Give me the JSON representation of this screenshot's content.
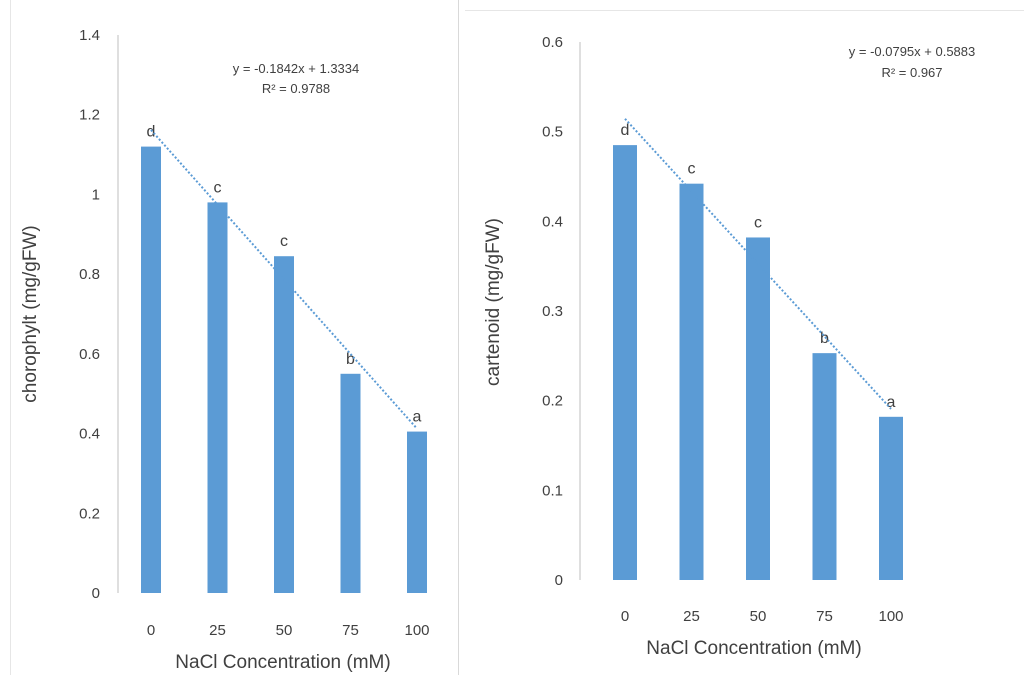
{
  "chart_data": [
    {
      "type": "bar",
      "categories": [
        "0",
        "25",
        "50",
        "75",
        "100"
      ],
      "values": [
        1.12,
        0.98,
        0.845,
        0.55,
        0.405
      ],
      "significance_letters": [
        "d",
        "c",
        "c",
        "b",
        "a"
      ],
      "trendline": {
        "type": "linear",
        "equation": "y = -0.1842x + 1.3334",
        "r2": "R² = 0.9788",
        "slope": -0.1842,
        "intercept": 1.3334,
        "color": "#5b9bd5"
      },
      "xlabel": "NaCl Concentration  (mM)",
      "ylabel": "chorophylt  (mg/gFW)",
      "ylim": [
        0,
        1.4
      ],
      "yticks": [
        "0",
        "0.2",
        "0.4",
        "0.6",
        "0.8",
        "1",
        "1.2",
        "1.4"
      ],
      "bar_color": "#5b9bd5",
      "grid": false
    },
    {
      "type": "bar",
      "categories": [
        "0",
        "25",
        "50",
        "75",
        "100"
      ],
      "values": [
        0.485,
        0.442,
        0.382,
        0.253,
        0.182
      ],
      "significance_letters": [
        "d",
        "c",
        "c",
        "b",
        "a"
      ],
      "trendline": {
        "type": "linear",
        "equation": "y = -0.0795x + 0.5883",
        "r2": "R² = 0.967",
        "slope": -0.0795,
        "intercept": 0.5883,
        "color": "#5b9bd5"
      },
      "xlabel": "NaCl Concentration  (mM)",
      "ylabel": "cartenoid  (mg/gFW)",
      "ylim": [
        0,
        0.6
      ],
      "yticks": [
        "0",
        "0.1",
        "0.2",
        "0.3",
        "0.4",
        "0.5",
        "0.6"
      ],
      "bar_color": "#5b9bd5",
      "grid": false
    }
  ]
}
